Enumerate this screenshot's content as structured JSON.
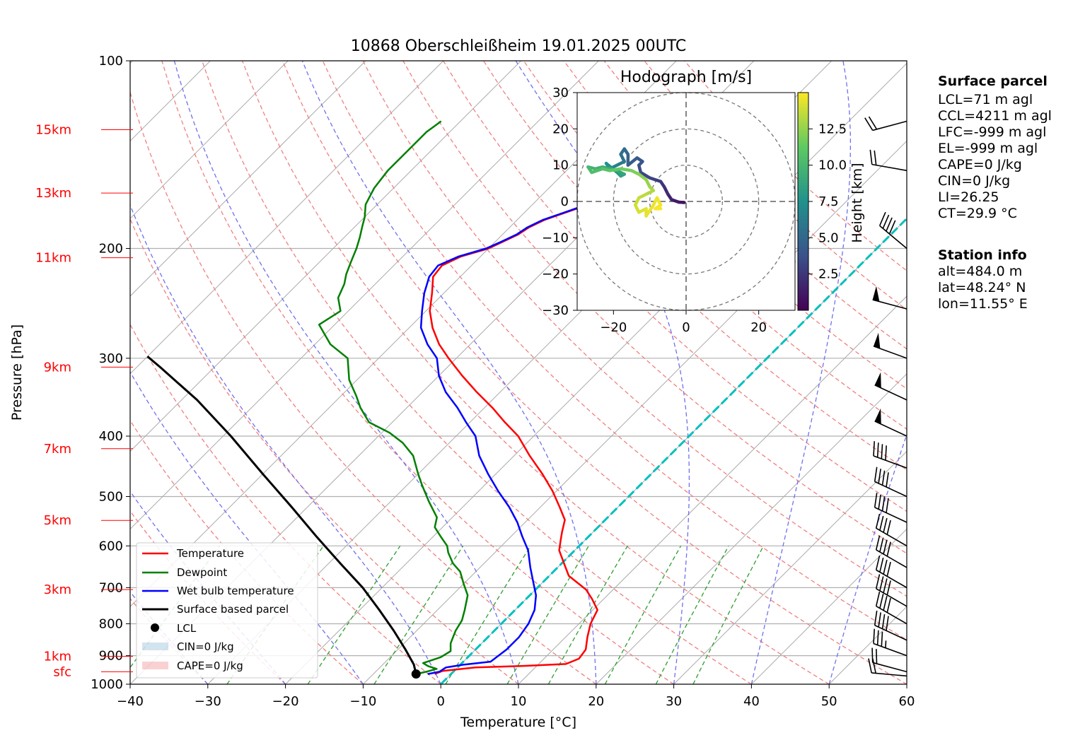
{
  "chart_data": {
    "type": "line",
    "title": "10868 Oberschleißheim 19.01.2025 00UTC",
    "xlabel": "Temperature [°C]",
    "ylabel": "Pressure [hPa]",
    "xlim": [
      -40,
      60
    ],
    "ylim": [
      1000,
      100
    ],
    "log_y": true,
    "skew_t": true,
    "grid": true,
    "x_ticks": [
      "−40",
      "−30",
      "−20",
      "−10",
      "0",
      "10",
      "20",
      "30",
      "40",
      "50",
      "60"
    ],
    "y_ticks": [
      "100",
      "200",
      "300",
      "400",
      "500",
      "600",
      "700",
      "800",
      "900",
      "1000"
    ],
    "height_labels": [
      {
        "label": "15km",
        "p": 129
      },
      {
        "label": "13km",
        "p": 163
      },
      {
        "label": "11km",
        "p": 207
      },
      {
        "label": "9km",
        "p": 310
      },
      {
        "label": "7km",
        "p": 419
      },
      {
        "label": "5km",
        "p": 546
      },
      {
        "label": "3km",
        "p": 705
      },
      {
        "label": "1km",
        "p": 902
      },
      {
        "label": "sfc",
        "p": 955
      }
    ],
    "series": [
      {
        "name": "Temperature",
        "color": "#ff0000",
        "points": [
          [
            -2.1,
            963
          ],
          [
            -1.5,
            952
          ],
          [
            2.3,
            940
          ],
          [
            8.0,
            935
          ],
          [
            13.5,
            928
          ],
          [
            14.5,
            910
          ],
          [
            14.2,
            880
          ],
          [
            12.8,
            840
          ],
          [
            11.5,
            800
          ],
          [
            10.6,
            760
          ],
          [
            8.5,
            730
          ],
          [
            6.5,
            705
          ],
          [
            2.5,
            670
          ],
          [
            0.3,
            640
          ],
          [
            -2.0,
            610
          ],
          [
            -3.0,
            590
          ],
          [
            -4.0,
            570
          ],
          [
            -5.2,
            545
          ],
          [
            -7.5,
            520
          ],
          [
            -10.5,
            490
          ],
          [
            -14.0,
            460
          ],
          [
            -18.0,
            430
          ],
          [
            -22.0,
            400
          ],
          [
            -25.5,
            380
          ],
          [
            -29.0,
            360
          ],
          [
            -33.0,
            340
          ],
          [
            -37.0,
            320
          ],
          [
            -41.0,
            300
          ],
          [
            -44.0,
            285
          ],
          [
            -47.0,
            268
          ],
          [
            -49.5,
            252
          ],
          [
            -51.5,
            236
          ],
          [
            -53.5,
            222
          ],
          [
            -53.8,
            213
          ],
          [
            -52.5,
            206
          ],
          [
            -50.0,
            200
          ],
          [
            -49.0,
            195
          ],
          [
            -48.0,
            190
          ],
          [
            -47.5,
            185
          ],
          [
            -46.5,
            180
          ],
          [
            -45.0,
            176
          ],
          [
            -43.5,
            172
          ],
          [
            -42.0,
            168
          ],
          [
            -41.0,
            164
          ],
          [
            -40.0,
            160
          ],
          [
            -38.5,
            156
          ],
          [
            -37.0,
            150
          ],
          [
            -35.5,
            145
          ],
          [
            -34.0,
            140
          ],
          [
            -33.0,
            136
          ],
          [
            -32.5,
            133
          ],
          [
            -32.0,
            130
          ],
          [
            -31.5,
            127
          ],
          [
            -30.5,
            125
          ]
        ]
      },
      {
        "name": "Dewpoint",
        "color": "#008000",
        "points": [
          [
            -4.5,
            963
          ],
          [
            -3.5,
            955
          ],
          [
            -2.5,
            945
          ],
          [
            -4.0,
            935
          ],
          [
            -5.0,
            925
          ],
          [
            -3.5,
            905
          ],
          [
            -3.0,
            885
          ],
          [
            -4.0,
            860
          ],
          [
            -4.5,
            840
          ],
          [
            -5.0,
            820
          ],
          [
            -5.5,
            790
          ],
          [
            -6.5,
            760
          ],
          [
            -8.0,
            720
          ],
          [
            -10.0,
            690
          ],
          [
            -12.0,
            660
          ],
          [
            -14.0,
            640
          ],
          [
            -16.0,
            615
          ],
          [
            -17.0,
            600
          ],
          [
            -19.0,
            580
          ],
          [
            -21.0,
            560
          ],
          [
            -22.0,
            540
          ],
          [
            -25.0,
            510
          ],
          [
            -28.0,
            480
          ],
          [
            -30.0,
            460
          ],
          [
            -33.0,
            430
          ],
          [
            -36.0,
            410
          ],
          [
            -39.0,
            395
          ],
          [
            -43.0,
            380
          ],
          [
            -46.0,
            360
          ],
          [
            -48.0,
            345
          ],
          [
            -51.0,
            325
          ],
          [
            -54.0,
            300
          ],
          [
            -58.0,
            285
          ],
          [
            -62.0,
            265
          ],
          [
            -61.0,
            252
          ],
          [
            -63.0,
            240
          ],
          [
            -64.0,
            228
          ],
          [
            -65.0,
            220
          ],
          [
            -66.0,
            210
          ],
          [
            -67.0,
            200
          ],
          [
            -68.0,
            192
          ],
          [
            -69.0,
            185
          ],
          [
            -70.0,
            178
          ],
          [
            -71.5,
            170
          ],
          [
            -72.5,
            160
          ],
          [
            -73.0,
            150
          ],
          [
            -73.0,
            140
          ],
          [
            -73.0,
            130
          ],
          [
            -72.8,
            128
          ],
          [
            -72.5,
            125
          ]
        ]
      },
      {
        "name": "Wet bulb temperature",
        "color": "#0000ff",
        "points": [
          [
            -3.0,
            963
          ],
          [
            -1.8,
            955
          ],
          [
            -1.5,
            940
          ],
          [
            0.5,
            930
          ],
          [
            3.5,
            920
          ],
          [
            4.0,
            880
          ],
          [
            4.0,
            840
          ],
          [
            3.5,
            800
          ],
          [
            2.5,
            760
          ],
          [
            0.8,
            720
          ],
          [
            -1.0,
            690
          ],
          [
            -3.5,
            650
          ],
          [
            -6.0,
            610
          ],
          [
            -8.5,
            580
          ],
          [
            -11.0,
            550
          ],
          [
            -14.0,
            520
          ],
          [
            -17.5,
            490
          ],
          [
            -21.0,
            460
          ],
          [
            -24.5,
            430
          ],
          [
            -27.5,
            400
          ],
          [
            -30.5,
            380
          ],
          [
            -33.5,
            360
          ],
          [
            -37.0,
            340
          ],
          [
            -40.0,
            320
          ],
          [
            -42.5,
            300
          ],
          [
            -45.5,
            285
          ],
          [
            -48.5,
            268
          ],
          [
            -50.5,
            252
          ],
          [
            -52.5,
            236
          ],
          [
            -54.0,
            222
          ],
          [
            -54.3,
            213
          ],
          [
            -52.8,
            206
          ],
          [
            -50.3,
            200
          ],
          [
            -49.2,
            195
          ],
          [
            -48.2,
            190
          ],
          [
            -47.7,
            185
          ],
          [
            -46.7,
            180
          ],
          [
            -45.2,
            176
          ],
          [
            -43.7,
            172
          ],
          [
            -42.2,
            168
          ],
          [
            -41.2,
            164
          ],
          [
            -40.2,
            160
          ],
          [
            -38.7,
            156
          ],
          [
            -37.2,
            150
          ],
          [
            -35.7,
            145
          ],
          [
            -34.2,
            140
          ],
          [
            -33.2,
            136
          ],
          [
            -32.7,
            133
          ],
          [
            -32.2,
            130
          ],
          [
            -31.7,
            127
          ],
          [
            -30.7,
            125
          ]
        ]
      },
      {
        "name": "Surface based parcel",
        "color": "#000000",
        "points": [
          [
            -4.5,
            963
          ],
          [
            -6.0,
            930
          ],
          [
            -9.0,
            880
          ],
          [
            -13.0,
            820
          ],
          [
            -17.5,
            760
          ],
          [
            -22.5,
            700
          ],
          [
            -28.5,
            640
          ],
          [
            -35.0,
            580
          ],
          [
            -42.0,
            520
          ],
          [
            -50.0,
            460
          ],
          [
            -59.0,
            400
          ],
          [
            -68.0,
            350
          ],
          [
            -77.0,
            310
          ],
          [
            -80.0,
            298
          ]
        ]
      }
    ],
    "lcl": {
      "t": -4.5,
      "p": 963,
      "label": "LCL"
    },
    "isotherm_0c": {
      "color": "#00bfbf"
    },
    "cin_label": "CIN=0 J/kg",
    "cape_label": "CAPE=0 J/kg",
    "legend_position": "lower-left",
    "surface_parcel": {
      "heading": "Surface parcel",
      "lines": [
        "LCL=71 m agl",
        "CCL=4211 m agl",
        "LFC=-999 m agl",
        "EL=-999 m agl",
        "CAPE=0 J/kg",
        "CIN=0 J/kg",
        "LI=26.25",
        "CT=29.9 °C"
      ]
    },
    "station_info": {
      "heading": "Station info",
      "lines": [
        "alt=484.0 m",
        "lat=48.24° N",
        "lon=11.55° E"
      ]
    },
    "hodograph": {
      "title": "Hodograph [m/s]",
      "xlim": [
        -30,
        30
      ],
      "ylim": [
        -30,
        30
      ],
      "ticks": [
        "−20",
        "0",
        "20"
      ],
      "yticks": [
        "30",
        "20",
        "10",
        "0",
        "−10",
        "−20",
        "−30"
      ],
      "rings": [
        10,
        20,
        30
      ],
      "colorbar_label": "Height [km]",
      "colorbar_ticks": [
        "2.5",
        "5.0",
        "7.5",
        "10.0",
        "12.5"
      ],
      "colorbar_max": 15,
      "points": [
        [
          -0.5,
          -0.3,
          0.5
        ],
        [
          -2,
          -0.2,
          0.8
        ],
        [
          -4,
          0.5,
          1.2
        ],
        [
          -5,
          2,
          1.6
        ],
        [
          -6,
          4,
          2.0
        ],
        [
          -7,
          5.5,
          2.4
        ],
        [
          -8.5,
          6,
          2.8
        ],
        [
          -10,
          6.5,
          3.0
        ],
        [
          -12.5,
          8,
          3.2
        ],
        [
          -13,
          10,
          3.5
        ],
        [
          -12,
          11,
          3.8
        ],
        [
          -13.5,
          12,
          4.0
        ],
        [
          -16,
          10,
          4.3
        ],
        [
          -16,
          13,
          4.6
        ],
        [
          -17,
          14.5,
          5.0
        ],
        [
          -18,
          13,
          5.3
        ],
        [
          -17,
          11,
          5.6
        ],
        [
          -19,
          10,
          6.0
        ],
        [
          -21,
          9,
          6.5
        ],
        [
          -22,
          10.5,
          7.0
        ],
        [
          -19,
          8,
          7.5
        ],
        [
          -18,
          7,
          8.0
        ],
        [
          -17,
          7.5,
          8.5
        ],
        [
          -19,
          8.5,
          8.8
        ],
        [
          -23,
          9.5,
          9.2
        ],
        [
          -25,
          9,
          9.5
        ],
        [
          -27,
          9.5,
          9.8
        ],
        [
          -26,
          8,
          10.1
        ],
        [
          -23,
          9,
          10.4
        ],
        [
          -21,
          8.5,
          10.8
        ],
        [
          -18,
          9,
          11.2
        ],
        [
          -15,
          8.5,
          11.6
        ],
        [
          -13,
          7.5,
          12.0
        ],
        [
          -11,
          6,
          12.3
        ],
        [
          -10,
          4,
          12.6
        ],
        [
          -9,
          3,
          12.9
        ],
        [
          -11,
          2,
          13.2
        ],
        [
          -13,
          1,
          13.5
        ],
        [
          -14,
          -1,
          13.8
        ],
        [
          -13,
          -3,
          14.0
        ],
        [
          -11,
          -2,
          14.2
        ],
        [
          -11,
          -4,
          14.4
        ],
        [
          -9,
          -1,
          14.5
        ],
        [
          -8,
          1,
          14.6
        ],
        [
          -7,
          -1,
          14.7
        ],
        [
          -8.5,
          -2,
          14.8
        ],
        [
          -7,
          -2,
          14.9
        ]
      ]
    },
    "wind_barbs": [
      {
        "p": 970,
        "speed": 20,
        "dir": 275
      },
      {
        "p": 955,
        "speed": 20,
        "dir": 285
      },
      {
        "p": 900,
        "speed": 35,
        "dir": 290
      },
      {
        "p": 850,
        "speed": 40,
        "dir": 295
      },
      {
        "p": 800,
        "speed": 40,
        "dir": 300
      },
      {
        "p": 750,
        "speed": 40,
        "dir": 300
      },
      {
        "p": 700,
        "speed": 40,
        "dir": 300
      },
      {
        "p": 650,
        "speed": 40,
        "dir": 300
      },
      {
        "p": 600,
        "speed": 40,
        "dir": 300
      },
      {
        "p": 550,
        "speed": 40,
        "dir": 295
      },
      {
        "p": 500,
        "speed": 40,
        "dir": 295
      },
      {
        "p": 450,
        "speed": 40,
        "dir": 290
      },
      {
        "p": 400,
        "speed": 50,
        "dir": 295
      },
      {
        "p": 350,
        "speed": 50,
        "dir": 295
      },
      {
        "p": 300,
        "speed": 50,
        "dir": 290
      },
      {
        "p": 250,
        "speed": 50,
        "dir": 285
      },
      {
        "p": 200,
        "speed": 40,
        "dir": 310
      },
      {
        "p": 150,
        "speed": 20,
        "dir": 280
      },
      {
        "p": 125,
        "speed": 20,
        "dir": 255
      }
    ]
  }
}
